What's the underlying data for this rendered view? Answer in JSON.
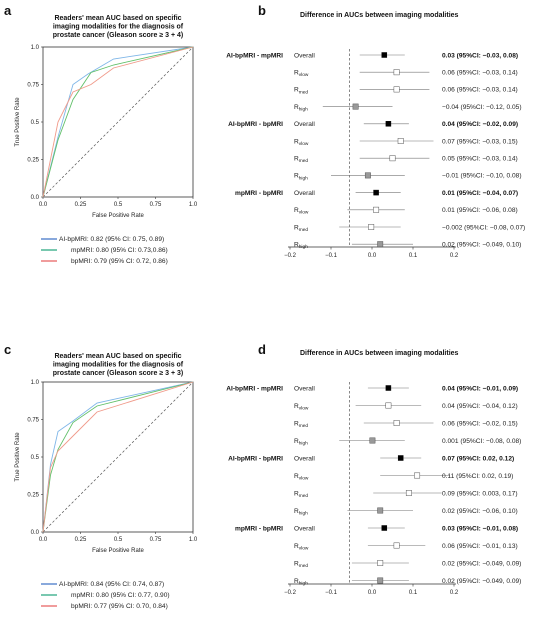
{
  "panels": {
    "a": {
      "letter": "a"
    },
    "b": {
      "letter": "b"
    },
    "c": {
      "letter": "c"
    },
    "d": {
      "letter": "d"
    }
  },
  "colors": {
    "ai": "#3a6fc4",
    "mp": "#1fa37a",
    "bp": "#e55a5a",
    "ai_light": "#7fb6e8",
    "mp_light": "#62c06a",
    "bp_light": "#f09a8a"
  },
  "chart_data": [
    {
      "id": "a",
      "type": "line",
      "title": [
        "Readers' mean AUC based on specific",
        "imaging modalities for the diagnosis of",
        "prostate cancer (Gleason score ≥ 3 + 4)"
      ],
      "xlabel": "False Positive Rate",
      "ylabel": "True Positive Rate",
      "xlim": [
        0,
        1
      ],
      "ylim": [
        0,
        1
      ],
      "xticks": [
        "0.0",
        "0.25",
        "0.5",
        "0.75",
        "1.0"
      ],
      "yticks": [
        "0.0",
        "0.25",
        "0.5",
        "0.75",
        "1.0"
      ],
      "series": [
        {
          "name": "AI-bpMRI: 0.82 (95% CI: 0.75, 0.89)",
          "color": "#7fb6e8",
          "x": [
            0,
            0.1,
            0.2,
            0.3,
            0.47,
            1.0
          ],
          "y": [
            0,
            0.4,
            0.75,
            0.82,
            0.92,
            1.0
          ]
        },
        {
          "name": "mpMRI: 0.80 (95% CI: 0.73,0.86)",
          "color": "#62c06a",
          "x": [
            0,
            0.1,
            0.2,
            0.32,
            0.47,
            1.0
          ],
          "y": [
            0,
            0.38,
            0.65,
            0.83,
            0.88,
            1.0
          ]
        },
        {
          "name": "bpMRI: 0.79 (95% CI: 0.72, 0.86)",
          "color": "#f09a8a",
          "x": [
            0,
            0.1,
            0.2,
            0.32,
            0.47,
            1.0
          ],
          "y": [
            0,
            0.5,
            0.7,
            0.75,
            0.86,
            1.0
          ]
        }
      ],
      "legend_colors": [
        "#3a6fc4",
        "#1fa37a",
        "#e55a5a"
      ]
    },
    {
      "id": "c",
      "type": "line",
      "title": [
        "Readers' mean AUC based on specific",
        "imaging modalities for the diagnosis of",
        "prostate cancer (Gleason score ≥ 3 + 3)"
      ],
      "xlabel": "False Positive Rate",
      "ylabel": "True Positive Rate",
      "xlim": [
        0,
        1
      ],
      "ylim": [
        0,
        1
      ],
      "xticks": [
        "0.0",
        "0.25",
        "0.5",
        "0.75",
        "1.0"
      ],
      "yticks": [
        "0.0",
        "0.25",
        "0.5",
        "0.75",
        "1.0"
      ],
      "series": [
        {
          "name": "AI-bpMRI: 0.84 (95% CI: 0.74, 0.87)",
          "color": "#7fb6e8",
          "x": [
            0,
            0.05,
            0.1,
            0.2,
            0.36,
            1.0
          ],
          "y": [
            0,
            0.45,
            0.67,
            0.74,
            0.86,
            1.0
          ]
        },
        {
          "name": "mpMRI: 0.80 (95% CI: 0.77, 0.90)",
          "color": "#62c06a",
          "x": [
            0,
            0.05,
            0.1,
            0.2,
            0.36,
            1.0
          ],
          "y": [
            0,
            0.38,
            0.55,
            0.73,
            0.84,
            1.0
          ]
        },
        {
          "name": "bpMRI: 0.77 (95% CI: 0.70, 0.84)",
          "color": "#f09a8a",
          "x": [
            0,
            0.05,
            0.1,
            0.2,
            0.36,
            1.0
          ],
          "y": [
            0,
            0.43,
            0.54,
            0.64,
            0.8,
            1.0
          ]
        }
      ],
      "legend_colors": [
        "#3a6fc4",
        "#1fa37a",
        "#e55a5a"
      ]
    },
    {
      "id": "b",
      "type": "scatter",
      "title": "Difference in AUCs between imaging modalities",
      "xlim": [
        -0.2,
        0.2
      ],
      "xticks": [
        "−0.2",
        "−0.1",
        "0.0",
        "0.1",
        "0.2"
      ],
      "xtick_values": [
        -0.2,
        -0.1,
        0.0,
        0.1,
        0.2
      ],
      "groups": [
        {
          "label": "AI-bpMRI - mpMRI",
          "rows": [
            {
              "label": "Overall",
              "sub": "",
              "est": 0.03,
              "lo": -0.03,
              "hi": 0.08,
              "marker": "black",
              "text": "0.03 (95%CI: −0.03, 0.08)",
              "bold": true
            },
            {
              "label": "R",
              "sub": "vlow",
              "est": 0.06,
              "lo": -0.03,
              "hi": 0.14,
              "marker": "white",
              "text": "0.06 (95%CI: −0.03, 0.14)",
              "bold": false
            },
            {
              "label": "R",
              "sub": "med",
              "est": 0.06,
              "lo": -0.03,
              "hi": 0.14,
              "marker": "white",
              "text": "0.06 (95%CI: −0.03, 0.14)",
              "bold": false
            },
            {
              "label": "R",
              "sub": "high",
              "est": -0.04,
              "lo": -0.12,
              "hi": 0.05,
              "marker": "gray",
              "text": "−0.04 (95%CI: −0.12, 0.05)",
              "bold": false
            }
          ]
        },
        {
          "label": "AI-bpMRI - bpMRI",
          "rows": [
            {
              "label": "Overall",
              "sub": "",
              "est": 0.04,
              "lo": -0.02,
              "hi": 0.09,
              "marker": "black",
              "text": "0.04 (95%CI: −0.02, 0.09)",
              "bold": true
            },
            {
              "label": "R",
              "sub": "vlow",
              "est": 0.07,
              "lo": -0.03,
              "hi": 0.15,
              "marker": "white",
              "text": "0.07 (95%CI: −0.03, 0.15)",
              "bold": false
            },
            {
              "label": "R",
              "sub": "med",
              "est": 0.05,
              "lo": -0.03,
              "hi": 0.14,
              "marker": "white",
              "text": "0.05 (95%CI: −0.03, 0.14)",
              "bold": false
            },
            {
              "label": "R",
              "sub": "high",
              "est": -0.01,
              "lo": -0.1,
              "hi": 0.08,
              "marker": "gray",
              "text": "−0.01 (95%CI: −0.10, 0.08)",
              "bold": false
            }
          ]
        },
        {
          "label": "mpMRI - bpMRI",
          "rows": [
            {
              "label": "Overall",
              "sub": "",
              "est": 0.01,
              "lo": -0.04,
              "hi": 0.07,
              "marker": "black",
              "text": "0.01 (95%CI: −0.04, 0.07)",
              "bold": true
            },
            {
              "label": "R",
              "sub": "vlow",
              "est": 0.01,
              "lo": -0.06,
              "hi": 0.08,
              "marker": "white",
              "text": "0.01 (95%CI: −0.06, 0.08)",
              "bold": false
            },
            {
              "label": "R",
              "sub": "med",
              "est": -0.002,
              "lo": -0.08,
              "hi": 0.07,
              "marker": "white",
              "text": "−0.002 (95%CI: −0.08, 0.07)",
              "bold": false
            },
            {
              "label": "R",
              "sub": "high",
              "est": 0.02,
              "lo": -0.049,
              "hi": 0.1,
              "marker": "gray",
              "text": "0.02 (95%CI: −0.049, 0.10)",
              "bold": false
            }
          ]
        }
      ]
    },
    {
      "id": "d",
      "type": "scatter",
      "title": "Difference in AUCs between imaging modalities",
      "xlim": [
        -0.2,
        0.2
      ],
      "xticks": [
        "−0.2",
        "−0.1",
        "0.0",
        "0.1",
        "0.2"
      ],
      "xtick_values": [
        -0.2,
        -0.1,
        0.0,
        0.1,
        0.2
      ],
      "groups": [
        {
          "label": "AI-bpMRI - mpMRI",
          "rows": [
            {
              "label": "Overall",
              "sub": "",
              "est": 0.04,
              "lo": -0.01,
              "hi": 0.09,
              "marker": "black",
              "text": "0.04 (95%CI: −0.01, 0.09)",
              "bold": true
            },
            {
              "label": "R",
              "sub": "vlow",
              "est": 0.04,
              "lo": -0.04,
              "hi": 0.12,
              "marker": "white",
              "text": "0.04 (95%CI: −0.04, 0.12)",
              "bold": false
            },
            {
              "label": "R",
              "sub": "med",
              "est": 0.06,
              "lo": -0.02,
              "hi": 0.15,
              "marker": "white",
              "text": "0.06 (95%CI: −0.02, 0.15)",
              "bold": false
            },
            {
              "label": "R",
              "sub": "high",
              "est": 0.001,
              "lo": -0.08,
              "hi": 0.08,
              "marker": "gray",
              "text": "0.001 (95%CI: −0.08, 0.08)",
              "bold": false
            }
          ]
        },
        {
          "label": "AI-bpMRI - bpMRI",
          "rows": [
            {
              "label": "Overall",
              "sub": "",
              "est": 0.07,
              "lo": 0.02,
              "hi": 0.12,
              "marker": "black",
              "text": "0.07 (95%CI: 0.02, 0.12)",
              "bold": true
            },
            {
              "label": "R",
              "sub": "vlow",
              "est": 0.11,
              "lo": 0.02,
              "hi": 0.19,
              "marker": "white",
              "text": "0.11 (95%CI: 0.02, 0.19)",
              "bold": false
            },
            {
              "label": "R",
              "sub": "med",
              "est": 0.09,
              "lo": 0.003,
              "hi": 0.17,
              "marker": "white",
              "text": "0.09 (95%CI: 0.003, 0.17)",
              "bold": false
            },
            {
              "label": "R",
              "sub": "high",
              "est": 0.02,
              "lo": -0.06,
              "hi": 0.1,
              "marker": "gray",
              "text": "0.02 (95%CI: −0.06, 0.10)",
              "bold": false
            }
          ]
        },
        {
          "label": "mpMRI - bpMRI",
          "rows": [
            {
              "label": "Overall",
              "sub": "",
              "est": 0.03,
              "lo": -0.01,
              "hi": 0.08,
              "marker": "black",
              "text": "0.03 (95%CI: −0.01, 0.08)",
              "bold": true
            },
            {
              "label": "R",
              "sub": "vlow",
              "est": 0.06,
              "lo": -0.01,
              "hi": 0.13,
              "marker": "white",
              "text": "0.06 (95%CI: −0.01, 0.13)",
              "bold": false
            },
            {
              "label": "R",
              "sub": "med",
              "est": 0.02,
              "lo": -0.049,
              "hi": 0.09,
              "marker": "white",
              "text": "0.02 (95%CI: −0.049, 0.09)",
              "bold": false
            },
            {
              "label": "R",
              "sub": "high",
              "est": 0.02,
              "lo": -0.049,
              "hi": 0.09,
              "marker": "gray",
              "text": "0.02 (95%CI: −0.049, 0.09)",
              "bold": false
            }
          ]
        }
      ]
    }
  ]
}
